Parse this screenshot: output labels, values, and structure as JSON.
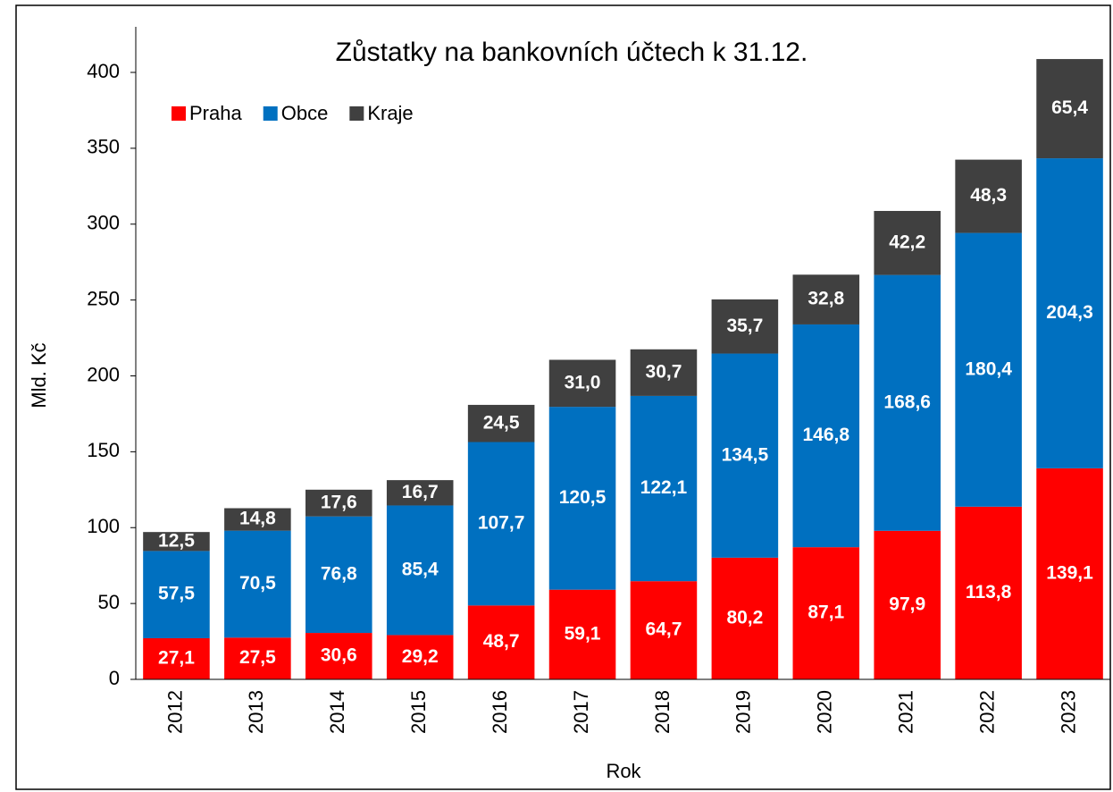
{
  "chart_data": {
    "type": "stacked_bar",
    "title": "Zůstatky na bankovních účtech k 31.12.",
    "xlabel": "Rok",
    "ylabel": "Mld. Kč",
    "categories": [
      "2012",
      "2013",
      "2014",
      "2015",
      "2016",
      "2017",
      "2018",
      "2019",
      "2020",
      "2021",
      "2022",
      "2023"
    ],
    "series": [
      {
        "name": "Praha",
        "color": "#ff0000",
        "values": [
          27.1,
          27.5,
          30.6,
          29.2,
          48.7,
          59.1,
          64.7,
          80.2,
          87.1,
          97.9,
          113.8,
          139.1
        ],
        "value_labels": [
          "27,1",
          "27,5",
          "30,6",
          "29,2",
          "48,7",
          "59,1",
          "64,7",
          "80,2",
          "87,1",
          "97,9",
          "113,8",
          "139,1"
        ]
      },
      {
        "name": "Obce",
        "color": "#0070c0",
        "values": [
          57.5,
          70.5,
          76.8,
          85.4,
          107.7,
          120.5,
          122.1,
          134.5,
          146.8,
          168.6,
          180.4,
          204.3
        ],
        "value_labels": [
          "57,5",
          "70,5",
          "76,8",
          "85,4",
          "107,7",
          "120,5",
          "122,1",
          "134,5",
          "146,8",
          "168,6",
          "180,4",
          "204,3"
        ]
      },
      {
        "name": "Kraje",
        "color": "#404040",
        "values": [
          12.5,
          14.8,
          17.6,
          16.7,
          24.5,
          31.0,
          30.7,
          35.7,
          32.8,
          42.2,
          48.3,
          65.4
        ],
        "value_labels": [
          "12,5",
          "14,8",
          "17,6",
          "16,7",
          "24,5",
          "31,0",
          "30,7",
          "35,7",
          "32,8",
          "42,2",
          "48,3",
          "65,4"
        ]
      }
    ],
    "ylim": [
      0,
      400
    ],
    "yticks": [
      0,
      50,
      100,
      150,
      200,
      250,
      300,
      350,
      400
    ],
    "grid": false,
    "legend": "top-left"
  }
}
